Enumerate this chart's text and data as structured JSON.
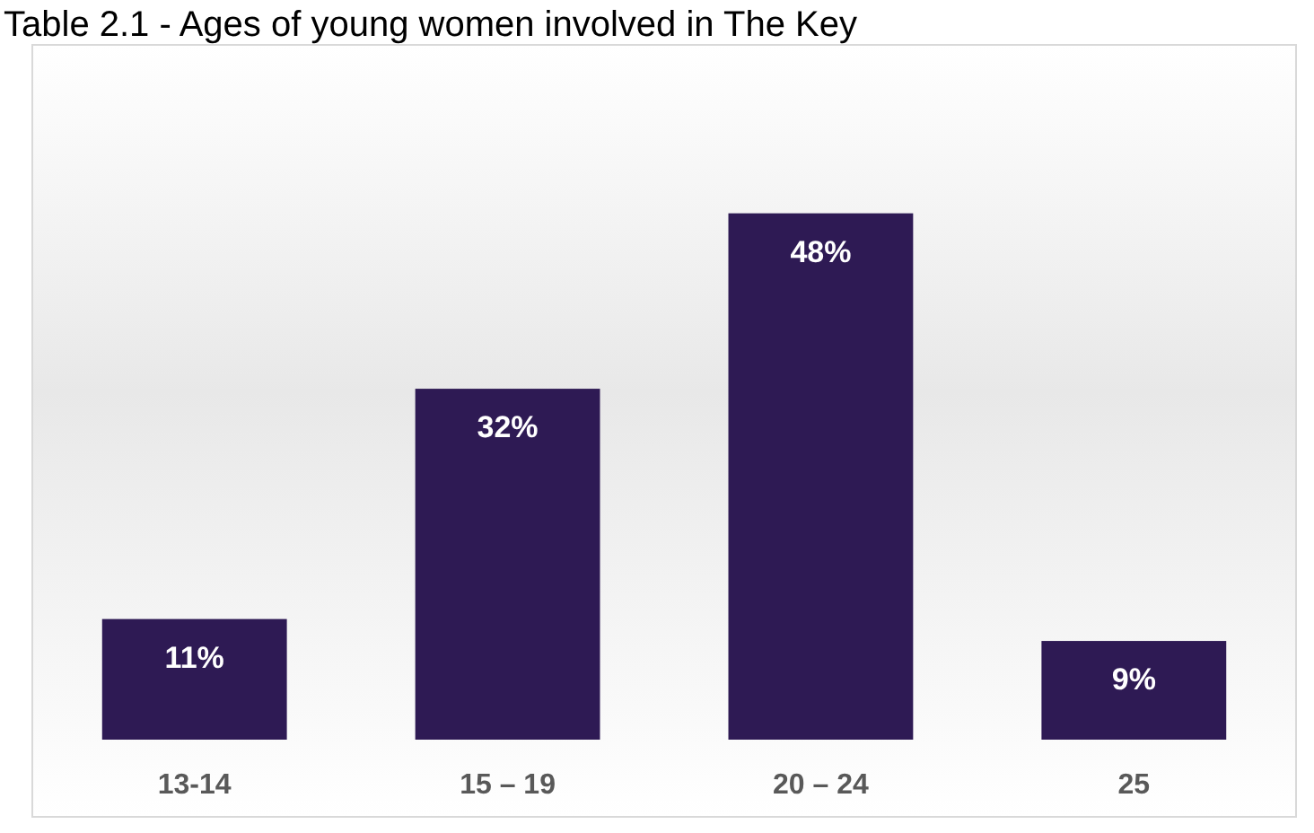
{
  "chart_data": {
    "type": "bar",
    "title": "Table 2.1 - Ages of young women involved in The Key",
    "categories": [
      "13-14",
      "15 – 19",
      "20 – 24",
      "25"
    ],
    "values": [
      11,
      32,
      48,
      9
    ],
    "value_labels": [
      "11%",
      "32%",
      "48%",
      "9%"
    ],
    "color": "#2e1a54"
  }
}
